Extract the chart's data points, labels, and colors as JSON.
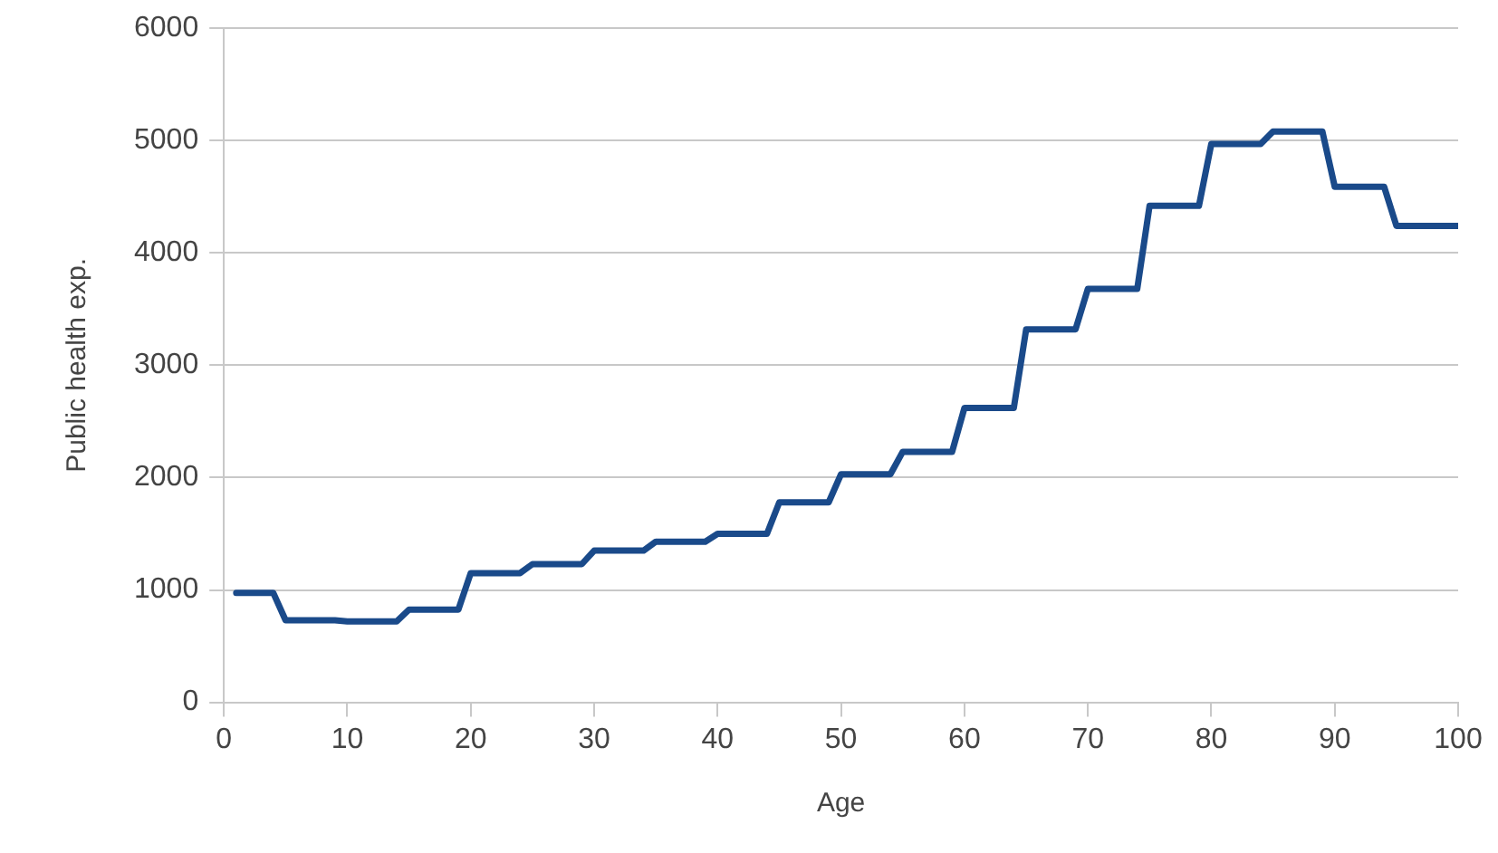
{
  "chart_data": {
    "type": "line",
    "xlabel": "Age",
    "ylabel": "Public health exp.",
    "x": [
      1,
      4,
      5,
      9,
      10,
      14,
      15,
      19,
      20,
      24,
      25,
      29,
      30,
      34,
      35,
      39,
      40,
      44,
      45,
      49,
      50,
      54,
      55,
      59,
      60,
      64,
      65,
      69,
      70,
      74,
      75,
      79,
      80,
      84,
      85,
      89,
      90,
      94,
      95,
      100
    ],
    "series": [
      {
        "color": "#1a4a8a",
        "values": [
          975,
          975,
          730,
          730,
          720,
          720,
          825,
          825,
          1150,
          1150,
          1230,
          1230,
          1350,
          1350,
          1430,
          1430,
          1500,
          1500,
          1780,
          1780,
          2030,
          2030,
          2230,
          2230,
          2620,
          2620,
          3320,
          3320,
          3680,
          3680,
          4420,
          4420,
          4970,
          4970,
          5080,
          5080,
          4590,
          4590,
          4240,
          4240
        ]
      }
    ],
    "xlim": [
      0,
      100
    ],
    "xticks": [
      0,
      10,
      20,
      30,
      40,
      50,
      60,
      70,
      80,
      90,
      100
    ],
    "ylim": [
      0,
      6000
    ],
    "yticks": [
      0,
      1000,
      2000,
      3000,
      4000,
      5000,
      6000
    ],
    "grid": "y",
    "marker": "none",
    "line_style": "solid",
    "legend": false
  }
}
